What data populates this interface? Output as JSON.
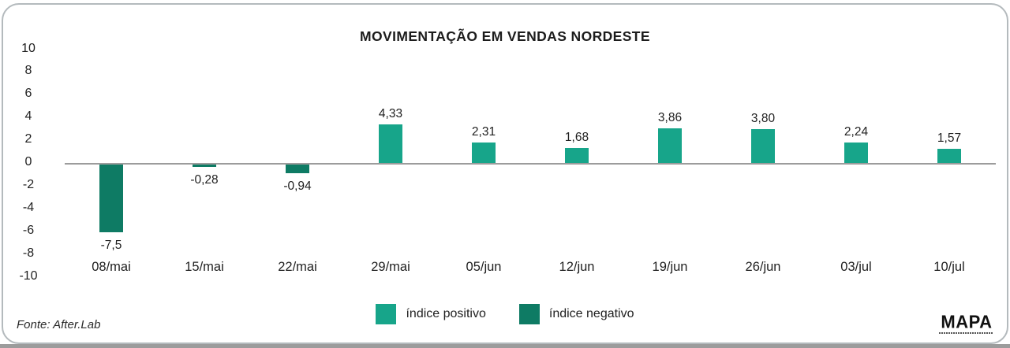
{
  "title": "MOVIMENTAÇÃO EM VENDAS NORDESTE",
  "colors": {
    "positive": "#17A58A",
    "negative": "#0E7B64",
    "axis_line": "#9C9C9C",
    "card_border": "#B4BABD",
    "text": "#1F1F1F"
  },
  "legend": [
    {
      "label": "índice positivo",
      "color": "#17A58A"
    },
    {
      "label": "índice negativo",
      "color": "#0E7B64"
    }
  ],
  "footer": {
    "source": "Fonte: After.Lab",
    "logo_text": "MAPA"
  },
  "chart_data": {
    "type": "bar",
    "title": "MOVIMENTAÇÃO EM VENDAS NORDESTE",
    "categories": [
      "08/mai",
      "15/mai",
      "22/mai",
      "29/mai",
      "05/jun",
      "12/jun",
      "19/jun",
      "26/jun",
      "03/jul",
      "10/jul"
    ],
    "values": [
      -7.5,
      -0.28,
      -0.94,
      4.33,
      2.31,
      1.68,
      3.86,
      3.8,
      2.24,
      1.57
    ],
    "value_labels": [
      "-7,5",
      "-0,28",
      "-0,94",
      "4,33",
      "2,31",
      "1,68",
      "3,86",
      "3,80",
      "2,24",
      "1,57"
    ],
    "positive_color": "#17A58A",
    "negative_color": "#0E7B64",
    "yticks": [
      10,
      8,
      6,
      4,
      2,
      0,
      -2,
      -4,
      -6,
      -8,
      -10
    ],
    "ylim": [
      -10,
      10
    ],
    "xlabel": "",
    "ylabel": "",
    "grid": false,
    "legend_position": "bottom",
    "legend_entries": [
      "índice positivo",
      "índice negativo"
    ]
  }
}
